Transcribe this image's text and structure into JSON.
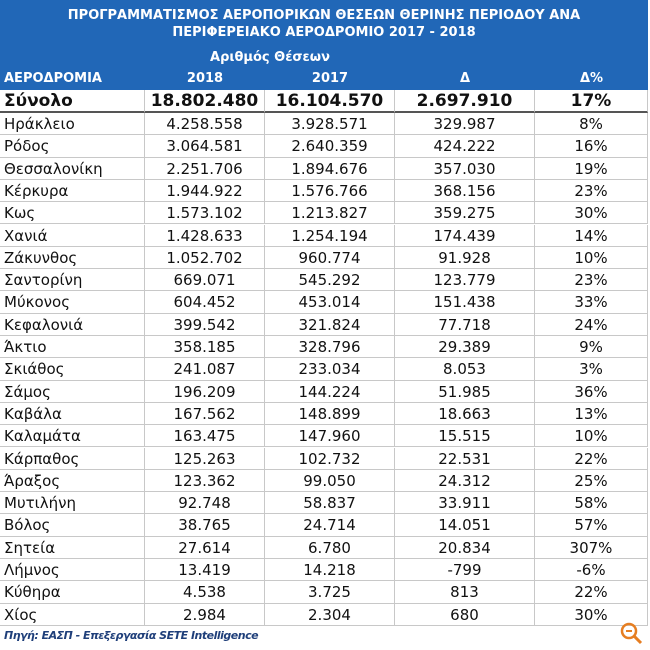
{
  "header": {
    "title_lines": [
      "ΠΡΟΓΡΑΜΜΑΤΙΣΜΟΣ ΑΕΡΟΠΟΡΙΚΩΝ ΘΕΣΕΩΝ ΘΕΡΙΝΗΣ ΠΕΡΙΟΔΟΥ ΑΝΑ",
      "ΠΕΡΙΦΕΡΕΙΑΚΟ ΑΕΡΟΔΡΟΜΙΟ 2017 - 2018"
    ],
    "group_label": "Αριθμός Θέσεων"
  },
  "table": {
    "columns": [
      "ΑΕΡΟΔΡΟΜΙΑ",
      "2018",
      "2017",
      "Δ",
      "Δ%"
    ],
    "total": [
      "Σύνολο",
      "18.802.480",
      "16.104.570",
      "2.697.910",
      "17%"
    ],
    "rows": [
      [
        "Ηράκλειο",
        "4.258.558",
        "3.928.571",
        "329.987",
        "8%"
      ],
      [
        "Ρόδος",
        "3.064.581",
        "2.640.359",
        "424.222",
        "16%"
      ],
      [
        "Θεσσαλονίκη",
        "2.251.706",
        "1.894.676",
        "357.030",
        "19%"
      ],
      [
        "Κέρκυρα",
        "1.944.922",
        "1.576.766",
        "368.156",
        "23%"
      ],
      [
        "Κως",
        "1.573.102",
        "1.213.827",
        "359.275",
        "30%"
      ],
      [
        "Χανιά",
        "1.428.633",
        "1.254.194",
        "174.439",
        "14%"
      ],
      [
        "Ζάκυνθος",
        "1.052.702",
        "960.774",
        "91.928",
        "10%"
      ],
      [
        "Σαντορίνη",
        "669.071",
        "545.292",
        "123.779",
        "23%"
      ],
      [
        "Μύκονος",
        "604.452",
        "453.014",
        "151.438",
        "33%"
      ],
      [
        "Κεφαλονιά",
        "399.542",
        "321.824",
        "77.718",
        "24%"
      ],
      [
        "Άκτιο",
        "358.185",
        "328.796",
        "29.389",
        "9%"
      ],
      [
        "Σκιάθος",
        "241.087",
        "233.034",
        "8.053",
        "3%"
      ],
      [
        "Σάμος",
        "196.209",
        "144.224",
        "51.985",
        "36%"
      ],
      [
        "Καβάλα",
        "167.562",
        "148.899",
        "18.663",
        "13%"
      ],
      [
        "Καλαμάτα",
        "163.475",
        "147.960",
        "15.515",
        "10%"
      ],
      [
        "Κάρπαθος",
        "125.263",
        "102.732",
        "22.531",
        "22%"
      ],
      [
        "Άραξος",
        "123.362",
        "99.050",
        "24.312",
        "25%"
      ],
      [
        "Μυτιλήνη",
        "92.748",
        "58.837",
        "33.911",
        "58%"
      ],
      [
        "Βόλος",
        "38.765",
        "24.714",
        "14.051",
        "57%"
      ],
      [
        "Σητεία",
        "27.614",
        "6.780",
        "20.834",
        "307%"
      ],
      [
        "Λήμνος",
        "13.419",
        "14.218",
        "-799",
        "-6%"
      ],
      [
        "Κύθηρα",
        "4.538",
        "3.725",
        "813",
        "22%"
      ],
      [
        "Χίος",
        "2.984",
        "2.304",
        "680",
        "30%"
      ]
    ]
  },
  "source": "Πηγή: ΕΑΣΠ - Επεξεργασία SETE Intelligence"
}
